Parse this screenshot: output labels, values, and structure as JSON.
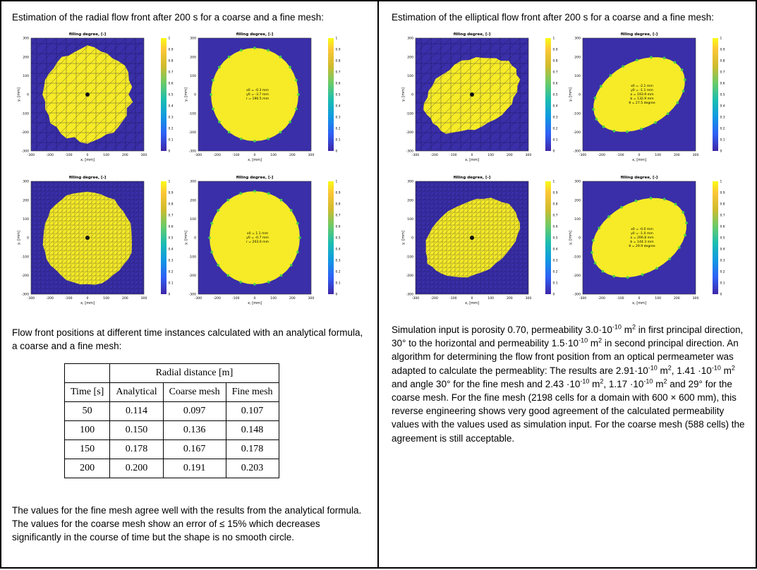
{
  "left": {
    "heading": "Estimation of the radial flow front after 200 s for a coarse and a fine mesh:",
    "intro": "Flow front positions at different time instances calculated with an analytical formula, a coarse and a fine mesh:",
    "table": {
      "group_header": "Radial distance [m]",
      "headers": [
        "Time [s]",
        "Analytical",
        "Coarse mesh",
        "Fine mesh"
      ],
      "rows": [
        [
          "50",
          "0.114",
          "0.097",
          "0.107"
        ],
        [
          "100",
          "0.150",
          "0.136",
          "0.148"
        ],
        [
          "150",
          "0.178",
          "0.167",
          "0.178"
        ],
        [
          "200",
          "0.200",
          "0.191",
          "0.203"
        ]
      ]
    },
    "conclusion": "The values for the fine mesh agree well with the results from the analytical formula. The values for the coarse mesh show an error of ≤ 15% which decreases significantly in the course of time but the shape is no smooth circle."
  },
  "right": {
    "heading": "Estimation of the elliptical flow front after 200 s for a coarse and a fine mesh:",
    "p1": "Simulation input is porosity 0.70, permeability 3.0·10",
    "p1_e1": "-10",
    "p1_b": " m",
    "p1_sq1": "2",
    "p1_c": " in first principal direction, 30° to the horizontal and permeability 1.5·10",
    "p1_e2": "-10",
    "p1_d": " m",
    "p1_sq2": "2",
    "p1_e": " in second principal direction. An algorithm for determining the flow front position from an optical permeameter  was adapted to calculate the permeablity: The results are 2.91·10",
    "p1_e3": "-10",
    "p1_f": " m",
    "p1_sq3": "2",
    "p1_g": ", 1.41 ·10",
    "p1_e4": "-10",
    "p1_h": " m",
    "p1_sq4": "2",
    "p1_i": " and angle 30° for the fine mesh and 2.43 ·10",
    "p1_e5": "-10",
    "p1_j": " m",
    "p1_sq5": "2",
    "p1_k": ", 1.17 ·10",
    "p1_e6": "-10",
    "p1_l": " m",
    "p1_sq6": "2",
    "p1_m": " and 29° for the coarse mesh. For the fine mesh (2198 cells for a domain with 600 × 600 mm), this reverse engineering shows very good agreement of the calculated permeability values with the values used as simulation input. For the coarse mesh (588 cells) the agreement is still acceptable."
  },
  "plot_common": {
    "title": "filling degree, [-]",
    "xlabel": "x, [mm]",
    "ylabel": "y, [mm]",
    "xticks": [
      "-300",
      "-200",
      "-100",
      "0",
      "100",
      "200",
      "300"
    ],
    "yticks": [
      "300",
      "200",
      "100",
      "0",
      "-100",
      "-200",
      "-300"
    ],
    "cbticks": [
      "1",
      "0.9",
      "0.8",
      "0.7",
      "0.6",
      "0.5",
      "0.4",
      "0.3",
      "0.2",
      "0.1",
      "0"
    ]
  },
  "plots": [
    {
      "id": "radial-coarse-mesh",
      "mesh": "coarse",
      "front": "mesh",
      "rx": 62,
      "ry": 66,
      "rot": 0
    },
    {
      "id": "radial-coarse-fit",
      "mesh": "none",
      "front": "fit",
      "rx": 62,
      "ry": 66,
      "rot": 0,
      "annot": [
        "x0 = -0.3 mm",
        "y0 = -3.7 mm",
        "r = 190.5 mm"
      ]
    },
    {
      "id": "elliptic-coarse-mesh",
      "mesh": "coarse",
      "front": "mesh",
      "rx": 70,
      "ry": 48,
      "rot": -30
    },
    {
      "id": "elliptic-coarse-fit",
      "mesh": "none",
      "front": "fit",
      "rx": 70,
      "ry": 46,
      "rot": -30,
      "annot": [
        "x0 = -2.1 mm",
        "y0 = -1.1 mm",
        "a = 193.9 mm",
        "b = 132.9 mm",
        "θ = 27.5 degree"
      ]
    },
    {
      "id": "radial-fine-mesh",
      "mesh": "fine",
      "front": "mesh",
      "rx": 64,
      "ry": 66,
      "rot": 0
    },
    {
      "id": "radial-fine-fit",
      "mesh": "none",
      "front": "fit",
      "rx": 64,
      "ry": 66,
      "rot": 0,
      "annot": [
        "x0 = 1.1 mm",
        "y0 = -0.7 mm",
        "r = 203.0 mm"
      ]
    },
    {
      "id": "elliptic-fine-mesh",
      "mesh": "fine",
      "front": "mesh",
      "rx": 72,
      "ry": 50,
      "rot": -30
    },
    {
      "id": "elliptic-fine-fit",
      "mesh": "none",
      "front": "fit",
      "rx": 72,
      "ry": 50,
      "rot": -30,
      "annot": [
        "x0 = -0.0 mm",
        "y0 = -1.0 mm",
        "a = 206.8 mm",
        "b = 144.3 mm",
        "θ = 29.9 degree"
      ]
    }
  ],
  "colors": {
    "plot_bg": "#3a2fa8",
    "fill": "#f6eb26",
    "front_point": "#46d04a",
    "mesh_line": "#0d0b40"
  }
}
